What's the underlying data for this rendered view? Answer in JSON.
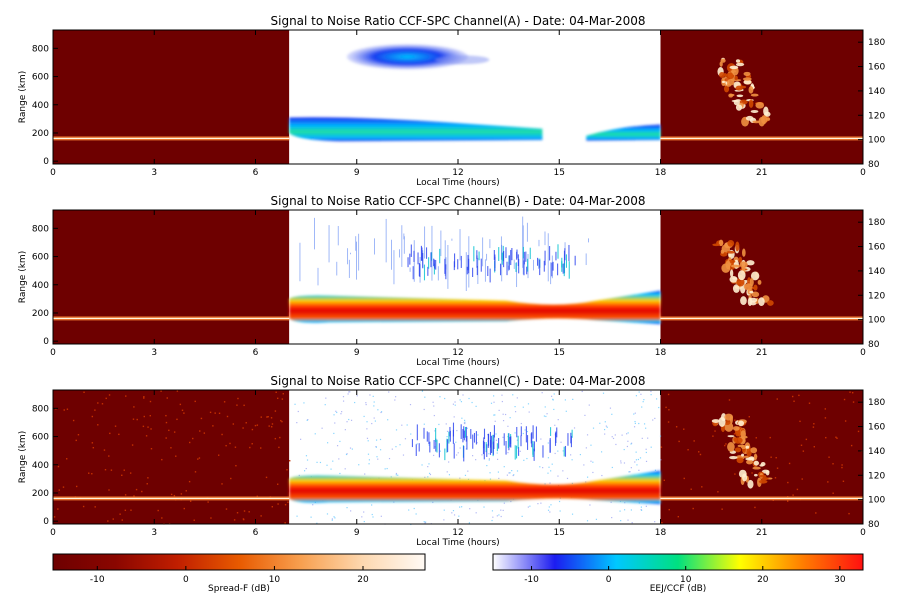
{
  "chart_data": [
    {
      "type": "heatmap",
      "title": "Signal to Noise Ratio CCF-SPC Channel(A) - Date: 04-Mar-2008",
      "xlabel": "Local Time (hours)",
      "ylabel": "Range (km)",
      "xticks": [
        "0",
        "3",
        "6",
        "9",
        "12",
        "15",
        "18",
        "21",
        "0"
      ],
      "yticks_left": [
        "0",
        "200",
        "400",
        "600",
        "800"
      ],
      "yticks_right": [
        "80",
        "100",
        "120",
        "140",
        "160",
        "180"
      ],
      "xlim": [
        0,
        24
      ],
      "ylim": [
        -20,
        930
      ],
      "ylim_right": [
        80,
        190
      ],
      "spread_f_windows_hours": [
        [
          0,
          7
        ],
        [
          18,
          24
        ]
      ],
      "eej_ccf_window_hours": [
        7,
        18
      ],
      "layers": [
        {
          "name": "lower echo layer",
          "t_start": 7.0,
          "t_end": 18.0,
          "range_km": [
            130,
            320
          ]
        },
        {
          "name": "upper echo region",
          "t_start": 8.7,
          "t_end": 12.3,
          "range_km": [
            650,
            830
          ]
        }
      ]
    },
    {
      "type": "heatmap",
      "title": "Signal to Noise Ratio CCF-SPC Channel(B) - Date: 04-Mar-2008",
      "xlabel": "Local Time (hours)",
      "ylabel": "Range (km)",
      "xticks": [
        "0",
        "3",
        "6",
        "9",
        "12",
        "15",
        "18",
        "21",
        "0"
      ],
      "yticks_left": [
        "0",
        "200",
        "400",
        "600",
        "800"
      ],
      "yticks_right": [
        "80",
        "100",
        "120",
        "140",
        "160",
        "180"
      ],
      "xlim": [
        0,
        24
      ],
      "ylim": [
        -20,
        930
      ],
      "ylim_right": [
        80,
        190
      ],
      "spread_f_windows_hours": [
        [
          0,
          7
        ],
        [
          18,
          24
        ]
      ],
      "eej_ccf_window_hours": [
        7,
        18
      ],
      "layers": [
        {
          "name": "lower echo layer",
          "t_start": 7.0,
          "t_end": 18.0,
          "range_km": [
            120,
            330
          ]
        },
        {
          "name": "upper echo region",
          "t_start": 10.5,
          "t_end": 15.5,
          "range_km": [
            480,
            640
          ]
        }
      ]
    },
    {
      "type": "heatmap",
      "title": "Signal to Noise Ratio CCF-SPC Channel(C) - Date: 04-Mar-2008",
      "xlabel": "Local Time (hours)",
      "ylabel": "Range (km)",
      "xticks": [
        "0",
        "3",
        "6",
        "9",
        "12",
        "15",
        "18",
        "21",
        "0"
      ],
      "yticks_left": [
        "0",
        "200",
        "400",
        "600",
        "800"
      ],
      "yticks_right": [
        "80",
        "100",
        "120",
        "140",
        "160",
        "180"
      ],
      "xlim": [
        0,
        24
      ],
      "ylim": [
        -20,
        930
      ],
      "ylim_right": [
        80,
        190
      ],
      "spread_f_windows_hours": [
        [
          0,
          7
        ],
        [
          18,
          24
        ]
      ],
      "eej_ccf_window_hours": [
        7,
        18
      ],
      "layers": [
        {
          "name": "lower echo layer",
          "t_start": 7.0,
          "t_end": 18.0,
          "range_km": [
            120,
            330
          ]
        },
        {
          "name": "upper echo region",
          "t_start": 10.5,
          "t_end": 15.5,
          "range_km": [
            480,
            640
          ]
        }
      ]
    }
  ],
  "colorbars": [
    {
      "label": "Spread-F (dB)",
      "ticks": [
        "-10",
        "0",
        "10",
        "20"
      ],
      "range": [
        -15,
        27
      ],
      "stops": [
        "#6e0000",
        "#8a0600",
        "#c01e00",
        "#e85a00",
        "#f8a050",
        "#fdd8b0",
        "#fffaf5"
      ]
    },
    {
      "label": "EEJ/CCF (dB)",
      "ticks": [
        "-10",
        "0",
        "10",
        "20",
        "30"
      ],
      "range": [
        -15,
        33
      ],
      "stops": [
        "#ffffff",
        "#1c1cf0",
        "#00c8ff",
        "#00e080",
        "#ffff00",
        "#ff8000",
        "#ff1010"
      ]
    }
  ],
  "colors": {
    "spread_f_background": "#6e0000",
    "eej_background": "#ffffff"
  }
}
